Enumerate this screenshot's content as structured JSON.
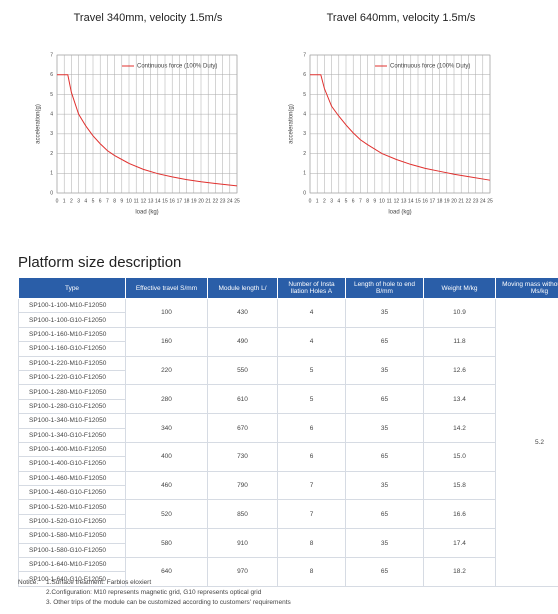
{
  "chart_data": [
    {
      "type": "line",
      "title": "Travel 340mm, velocity 1.5m/s",
      "x_label": "load (kg)",
      "y_label": "acceleration(g)",
      "x": [
        0,
        1,
        1.5,
        2,
        3,
        4,
        5,
        6,
        7,
        8,
        10,
        12,
        14,
        16,
        18,
        20,
        22,
        25
      ],
      "series": [
        {
          "name": "Continuous force (100% Duty)",
          "color": "#e0302e",
          "values": [
            6,
            6,
            6,
            5.1,
            4,
            3.4,
            2.9,
            2.5,
            2.15,
            1.9,
            1.5,
            1.2,
            0.98,
            0.82,
            0.68,
            0.57,
            0.48,
            0.36
          ]
        }
      ],
      "xlim": [
        0,
        25
      ],
      "xticks": [
        0,
        1,
        2,
        3,
        4,
        5,
        6,
        7,
        8,
        9,
        10,
        11,
        12,
        13,
        14,
        15,
        16,
        17,
        18,
        19,
        20,
        21,
        22,
        23,
        24,
        25
      ],
      "ylim": [
        0,
        7
      ],
      "yticks": [
        0,
        1,
        2,
        3,
        4,
        5,
        6,
        7
      ],
      "grid": true,
      "legend": "top-right"
    },
    {
      "type": "line",
      "title": "Travel 640mm, velocity 1.5m/s",
      "x_label": "load (kg)",
      "y_label": "acceleration(g)",
      "x": [
        0,
        1,
        1.5,
        2,
        3,
        4,
        5,
        6,
        7,
        8,
        10,
        12,
        14,
        16,
        18,
        20,
        22,
        25
      ],
      "series": [
        {
          "name": "Continuous force (100% Duty)",
          "color": "#e0302e",
          "values": [
            6,
            6,
            6,
            5.3,
            4.4,
            3.9,
            3.45,
            3.05,
            2.7,
            2.45,
            2.0,
            1.7,
            1.45,
            1.25,
            1.1,
            0.95,
            0.83,
            0.65
          ]
        }
      ],
      "xlim": [
        0,
        25
      ],
      "xticks": [
        0,
        1,
        2,
        3,
        4,
        5,
        6,
        7,
        8,
        9,
        10,
        11,
        12,
        13,
        14,
        15,
        16,
        17,
        18,
        19,
        20,
        21,
        22,
        23,
        24,
        25
      ],
      "ylim": [
        0,
        7
      ],
      "yticks": [
        0,
        1,
        2,
        3,
        4,
        5,
        6,
        7
      ],
      "grid": true,
      "legend": "top-right"
    }
  ],
  "heading": "Platform size description",
  "table": {
    "headers": [
      "Type",
      "Effective travel S/mm",
      "Module length L/",
      "Number of Insta llation Holes A",
      "Length of hole to end B/mm",
      "Weight M/kg",
      "Moving mass without load Ms/kg"
    ],
    "moving_mass": "5.2",
    "groups": [
      {
        "types": [
          "SP100-1-100-M10-F12050",
          "SP100-1-100-G10-F12050"
        ],
        "cells": [
          "100",
          "430",
          "4",
          "35",
          "10.9"
        ]
      },
      {
        "types": [
          "SP100-1-160-M10-F12050",
          "SP100-1-160-G10-F12050"
        ],
        "cells": [
          "160",
          "490",
          "4",
          "65",
          "11.8"
        ]
      },
      {
        "types": [
          "SP100-1-220-M10-F12050",
          "SP100-1-220-G10-F12050"
        ],
        "cells": [
          "220",
          "550",
          "5",
          "35",
          "12.6"
        ]
      },
      {
        "types": [
          "SP100-1-280-M10-F12050",
          "SP100-1-280-G10-F12050"
        ],
        "cells": [
          "280",
          "610",
          "5",
          "65",
          "13.4"
        ]
      },
      {
        "types": [
          "SP100-1-340-M10-F12050",
          "SP100-1-340-G10-F12050"
        ],
        "cells": [
          "340",
          "670",
          "6",
          "35",
          "14.2"
        ]
      },
      {
        "types": [
          "SP100-1-400-M10-F12050",
          "SP100-1-400-G10-F12050"
        ],
        "cells": [
          "400",
          "730",
          "6",
          "65",
          "15.0"
        ]
      },
      {
        "types": [
          "SP100-1-460-M10-F12050",
          "SP100-1-460-G10-F12050"
        ],
        "cells": [
          "460",
          "790",
          "7",
          "35",
          "15.8"
        ]
      },
      {
        "types": [
          "SP100-1-520-M10-F12050",
          "SP100-1-520-G10-F12050"
        ],
        "cells": [
          "520",
          "850",
          "7",
          "65",
          "16.6"
        ]
      },
      {
        "types": [
          "SP100-1-580-M10-F12050",
          "SP100-1-580-G10-F12050"
        ],
        "cells": [
          "580",
          "910",
          "8",
          "35",
          "17.4"
        ]
      },
      {
        "types": [
          "SP100-1-640-M10-F12050",
          "SP100-1-640-G10-F12050"
        ],
        "cells": [
          "640",
          "970",
          "8",
          "65",
          "18.2"
        ]
      }
    ]
  },
  "notice": {
    "label": "Notice:",
    "items": [
      "1.Surface treatment: Farblos eloxiert",
      "2.Configuration: M10 represents magnetic grid, G10 represents optical grid",
      "3. Other trips of the module can be customized according to customers' requirements"
    ]
  }
}
